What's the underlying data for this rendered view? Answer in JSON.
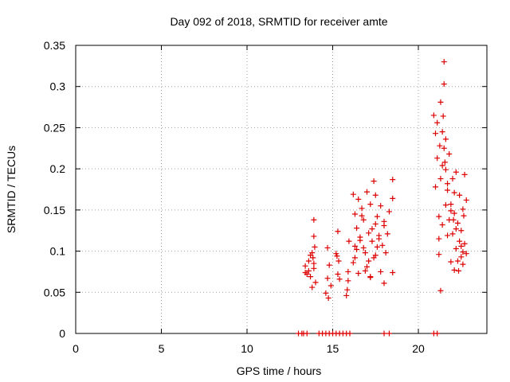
{
  "chart_data": {
    "type": "scatter",
    "title": "Day 092 of 2018, SRMTID for receiver amte",
    "xlabel": "GPS time / hours",
    "ylabel": "SRMTID / TECUs",
    "xlim": [
      0,
      24.0
    ],
    "ylim": [
      0,
      0.35
    ],
    "xticks": [
      0,
      5,
      10,
      15,
      20
    ],
    "xtick_labels": [
      "0",
      "5",
      "10",
      "15",
      "20"
    ],
    "yticks": [
      0,
      0.05,
      0.1,
      0.15,
      0.2,
      0.25,
      0.3,
      0.35
    ],
    "ytick_labels": [
      "0",
      "0.05",
      "0.1",
      "0.15",
      "0.2",
      "0.25",
      "0.3",
      "0.35"
    ],
    "grid": true,
    "marker": "plus",
    "marker_color": "#dd0000",
    "series": [
      {
        "name": "SRMTID",
        "x": [
          13.0,
          13.2,
          13.3,
          13.5,
          14.2,
          14.4,
          14.6,
          14.8,
          15.0,
          15.2,
          15.4,
          15.6,
          15.8,
          16.0,
          18.0,
          18.3,
          20.9,
          21.1,
          13.4,
          13.4,
          13.5,
          13.6,
          13.7,
          13.8,
          13.8,
          13.9,
          13.9,
          13.9,
          14.0,
          13.9,
          13.85,
          13.7,
          13.6,
          13.95,
          14.6,
          14.7,
          14.7,
          14.8,
          14.9,
          14.75,
          15.2,
          15.3,
          15.3,
          15.4,
          15.35,
          15.25,
          15.8,
          15.9,
          15.9,
          15.85,
          15.95,
          16.2,
          16.3,
          16.3,
          16.4,
          16.5,
          16.5,
          16.6,
          16.7,
          16.8,
          16.8,
          16.9,
          17.0,
          17.0,
          17.1,
          17.2,
          17.2,
          17.3,
          17.4,
          17.4,
          17.5,
          17.5,
          17.6,
          17.6,
          17.7,
          17.8,
          17.8,
          17.9,
          18.0,
          18.0,
          18.1,
          18.2,
          18.3,
          18.5,
          18.5,
          18.5,
          16.3,
          16.6,
          17.1,
          17.3,
          17.7,
          16.4,
          16.9,
          17.5,
          18.0,
          16.2,
          16.7,
          17.2,
          20.9,
          21.0,
          21.0,
          21.1,
          21.2,
          21.2,
          21.3,
          21.3,
          21.4,
          21.4,
          21.4,
          21.5,
          21.5,
          21.5,
          21.6,
          21.6,
          21.7,
          21.7,
          21.8,
          21.8,
          21.9,
          21.9,
          22.0,
          22.0,
          22.1,
          22.1,
          22.2,
          22.2,
          22.3,
          22.3,
          22.4,
          22.4,
          22.5,
          22.5,
          22.6,
          22.6,
          22.7,
          22.7,
          22.8,
          22.8,
          21.1,
          21.3,
          21.6,
          21.9,
          22.2,
          22.5,
          21.2,
          21.7,
          22.1,
          22.6,
          21.45,
          21.55,
          22.35,
          22.65,
          21.25,
          22.05
        ],
        "y": [
          0,
          0,
          0,
          0,
          0,
          0,
          0,
          0,
          0,
          0,
          0,
          0,
          0,
          0,
          0,
          0,
          0,
          0,
          0.082,
          0.074,
          0.072,
          0.088,
          0.095,
          0.056,
          0.098,
          0.138,
          0.118,
          0.085,
          0.062,
          0.079,
          0.092,
          0.069,
          0.076,
          0.105,
          0.049,
          0.067,
          0.104,
          0.083,
          0.058,
          0.043,
          0.097,
          0.124,
          0.072,
          0.066,
          0.088,
          0.094,
          0.046,
          0.075,
          0.064,
          0.053,
          0.112,
          0.169,
          0.145,
          0.092,
          0.128,
          0.163,
          0.073,
          0.117,
          0.152,
          0.104,
          0.138,
          0.098,
          0.172,
          0.081,
          0.122,
          0.068,
          0.157,
          0.112,
          0.185,
          0.092,
          0.133,
          0.168,
          0.105,
          0.142,
          0.119,
          0.075,
          0.155,
          0.107,
          0.136,
          0.061,
          0.098,
          0.121,
          0.148,
          0.187,
          0.164,
          0.074,
          0.106,
          0.113,
          0.088,
          0.127,
          0.115,
          0.102,
          0.076,
          0.095,
          0.131,
          0.086,
          0.143,
          0.069,
          0.265,
          0.243,
          0.178,
          0.213,
          0.142,
          0.096,
          0.188,
          0.052,
          0.204,
          0.245,
          0.132,
          0.33,
          0.303,
          0.225,
          0.199,
          0.156,
          0.119,
          0.174,
          0.218,
          0.138,
          0.157,
          0.087,
          0.188,
          0.121,
          0.146,
          0.077,
          0.196,
          0.103,
          0.134,
          0.088,
          0.168,
          0.112,
          0.093,
          0.125,
          0.151,
          0.084,
          0.109,
          0.193,
          0.097,
          0.162,
          0.256,
          0.281,
          0.236,
          0.149,
          0.127,
          0.106,
          0.115,
          0.182,
          0.171,
          0.099,
          0.264,
          0.208,
          0.076,
          0.143,
          0.228,
          0.138
        ]
      }
    ]
  }
}
